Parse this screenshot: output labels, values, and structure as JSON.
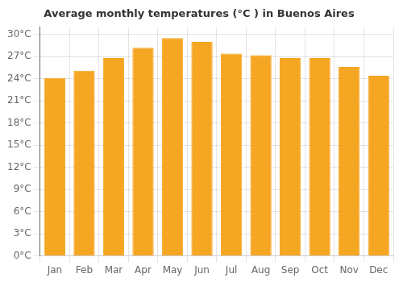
{
  "chart_data": {
    "type": "bar",
    "title": "Average monthly temperatures (°C ) in Buenos Aires",
    "categories": [
      "Jan",
      "Feb",
      "Mar",
      "Apr",
      "May",
      "Jun",
      "Jul",
      "Aug",
      "Sep",
      "Oct",
      "Nov",
      "Dec"
    ],
    "values": [
      24.1,
      25.1,
      26.8,
      28.2,
      29.5,
      29.0,
      27.4,
      27.2,
      26.8,
      26.8,
      25.6,
      24.4
    ],
    "color": "#F5A623",
    "ylim": [
      0,
      31
    ],
    "yticks": [
      {
        "value": 0,
        "label": "0°C"
      },
      {
        "value": 3,
        "label": "3°C"
      },
      {
        "value": 6,
        "label": "6°C"
      },
      {
        "value": 9,
        "label": "9°C"
      },
      {
        "value": 12,
        "label": "12°C"
      },
      {
        "value": 15,
        "label": "15°C"
      },
      {
        "value": 18,
        "label": "18°C"
      },
      {
        "value": 21,
        "label": "21°C"
      },
      {
        "value": 24,
        "label": "24°C"
      },
      {
        "value": 27,
        "label": "27°C"
      },
      {
        "value": 30,
        "label": "30°C"
      }
    ],
    "grid": true
  }
}
